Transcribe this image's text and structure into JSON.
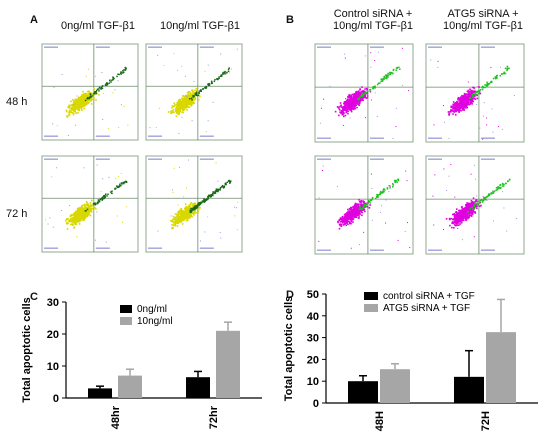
{
  "panels": {
    "A": "A",
    "B": "B",
    "C": "C",
    "D": "D"
  },
  "panelA": {
    "col_headers": [
      "0ng/ml TGF-β1",
      "10ng/ml TGF-β1"
    ],
    "row_labels": [
      "48 h",
      "72 h"
    ]
  },
  "panelB": {
    "col_headers": [
      {
        "line1": "Control siRNA +",
        "line2": "10ng/ml TGF-β1"
      },
      {
        "line1": "ATG5 siRNA +",
        "line2": "10ng/ml TGF-β1"
      }
    ]
  },
  "flow_plots": {
    "A": [
      {
        "row": 0,
        "col": 0,
        "main_color": "#d8d800",
        "accent_color": "#1a6a1a"
      },
      {
        "row": 0,
        "col": 1,
        "main_color": "#d8d800",
        "accent_color": "#1a6a1a"
      },
      {
        "row": 1,
        "col": 0,
        "main_color": "#d8d800",
        "accent_color": "#1a6a1a"
      },
      {
        "row": 1,
        "col": 1,
        "main_color": "#d8d800",
        "accent_color": "#1a6a1a"
      }
    ],
    "B": [
      {
        "row": 0,
        "col": 0,
        "main_color": "#e000e0",
        "accent_color": "#20c020"
      },
      {
        "row": 0,
        "col": 1,
        "main_color": "#e000e0",
        "accent_color": "#20c020"
      },
      {
        "row": 1,
        "col": 0,
        "main_color": "#e000e0",
        "accent_color": "#20c020"
      },
      {
        "row": 1,
        "col": 1,
        "main_color": "#e000e0",
        "accent_color": "#20c020"
      }
    ]
  },
  "chart_data": [
    {
      "panel": "C",
      "type": "bar",
      "categories": [
        "48hr",
        "72hr"
      ],
      "series": [
        {
          "name": "0ng/ml",
          "values": [
            3,
            6.5
          ],
          "errors": [
            0.7,
            1.8
          ],
          "color": "#000000"
        },
        {
          "name": "10ng/ml",
          "values": [
            7,
            21
          ],
          "errors": [
            2,
            2.7
          ],
          "color": "#a6a6a6"
        }
      ],
      "ylabel": "Total apoptotic cells",
      "ylim": [
        0,
        30
      ],
      "yticks": [
        0,
        10,
        20,
        30
      ],
      "legend": "top-center"
    },
    {
      "panel": "D",
      "type": "bar",
      "categories": [
        "48H",
        "72H"
      ],
      "series": [
        {
          "name": "control siRNA + TGF",
          "values": [
            10,
            12
          ],
          "errors": [
            2.5,
            12
          ],
          "color": "#000000"
        },
        {
          "name": "ATG5 siRNA + TGF",
          "values": [
            15.5,
            32.5
          ],
          "errors": [
            2.5,
            15
          ],
          "color": "#a6a6a6"
        }
      ],
      "ylabel": "Total apoptotic cells",
      "ylim": [
        0,
        50
      ],
      "yticks": [
        0,
        10,
        20,
        30,
        40,
        50
      ],
      "legend": "top-left"
    }
  ]
}
